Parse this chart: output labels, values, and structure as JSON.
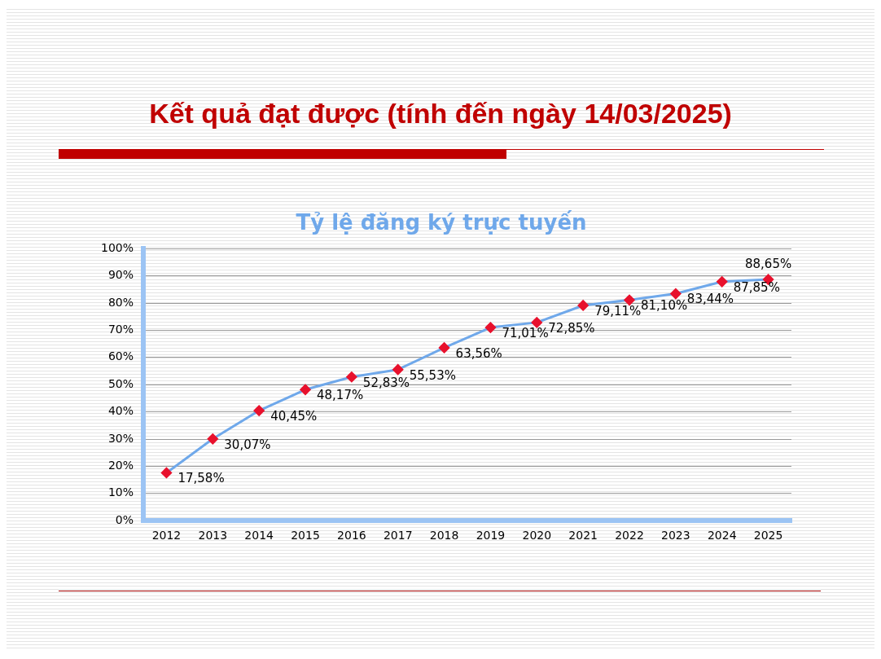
{
  "chart_data": {
    "type": "line",
    "title": "Kết quả đạt được (tính đến ngày 14/03/2025)",
    "subtitle": "Tỷ lệ đăng ký trực tuyến",
    "categories": [
      "2012",
      "2013",
      "2014",
      "2015",
      "2016",
      "2017",
      "2018",
      "2019",
      "2020",
      "2021",
      "2022",
      "2023",
      "2024",
      "2025"
    ],
    "series": [
      {
        "color": "#6fa8ea",
        "values": [
          17.58,
          30.07,
          40.45,
          48.17,
          52.83,
          55.53,
          63.56,
          71.01,
          72.85,
          79.11,
          81.1,
          83.44,
          87.85,
          88.65
        ],
        "value_labels": [
          "17,58%",
          "30,07%",
          "40,45%",
          "48,17%",
          "52,83%",
          "55,53%",
          "63,56%",
          "71,01%",
          "72,85%",
          "79,11%",
          "81,10%",
          "83,44%",
          "87,85%",
          "88,65%"
        ]
      }
    ],
    "ylim": [
      0,
      100
    ],
    "yticks": [
      {
        "value": 0,
        "label": "0%"
      },
      {
        "value": 10,
        "label": "10%"
      },
      {
        "value": 20,
        "label": "20%"
      },
      {
        "value": 30,
        "label": "30%"
      },
      {
        "value": 40,
        "label": "40%"
      },
      {
        "value": 50,
        "label": "50%"
      },
      {
        "value": 60,
        "label": "60%"
      },
      {
        "value": 70,
        "label": "70%"
      },
      {
        "value": 80,
        "label": "80%"
      },
      {
        "value": 90,
        "label": "90%"
      },
      {
        "value": 100,
        "label": "100%"
      }
    ],
    "grid": "y",
    "legend": false,
    "marker": "diamond",
    "line_style": "solid"
  }
}
